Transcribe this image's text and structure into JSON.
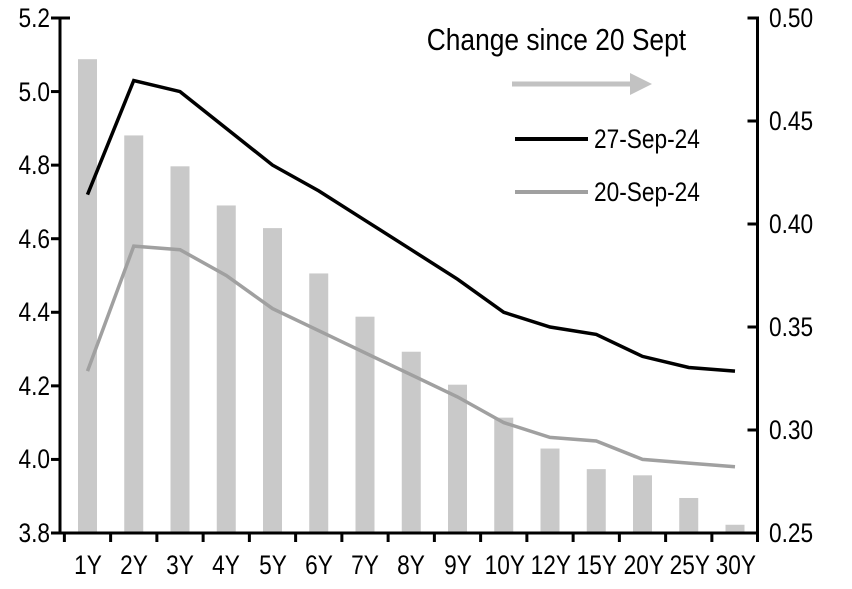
{
  "colors": {
    "black_line": "#000000",
    "gray_line": "#a0a0a0",
    "bars": "#c9c9c9",
    "arrow": "#c2c2c2",
    "axis": "#000000",
    "text": "#000000",
    "background": "#ffffff"
  },
  "legend": {
    "change_label": "Change since 20 Sept",
    "arrow_icon": "right-arrow",
    "series_27": "27-Sep-24",
    "series_20": "20-Sep-24"
  },
  "chart_data": {
    "type": "combo",
    "subtype": "bars on right axis + two lines on left axis",
    "categories": [
      "1Y",
      "2Y",
      "3Y",
      "4Y",
      "5Y",
      "6Y",
      "7Y",
      "8Y",
      "9Y",
      "10Y",
      "12Y",
      "15Y",
      "20Y",
      "25Y",
      "30Y"
    ],
    "series": [
      {
        "name": "Change since 20 Sept",
        "type": "bar",
        "axis": "right",
        "values": [
          0.48,
          0.443,
          0.428,
          0.409,
          0.398,
          0.376,
          0.355,
          0.338,
          0.322,
          0.306,
          0.291,
          0.281,
          0.278,
          0.267,
          0.254
        ]
      },
      {
        "name": "27-Sep-24",
        "type": "line",
        "axis": "left",
        "values": [
          4.72,
          5.03,
          5.0,
          4.9,
          4.8,
          4.73,
          4.65,
          4.57,
          4.49,
          4.4,
          4.36,
          4.34,
          4.28,
          4.25,
          4.24
        ]
      },
      {
        "name": "20-Sep-24",
        "type": "line",
        "axis": "left",
        "values": [
          4.24,
          4.58,
          4.57,
          4.5,
          4.41,
          4.35,
          4.29,
          4.23,
          4.17,
          4.1,
          4.06,
          4.05,
          4.0,
          3.99,
          3.98
        ]
      }
    ],
    "left_axis": {
      "min": 3.8,
      "max": 5.2,
      "tick_labels": [
        "5.2",
        "5.0",
        "4.8",
        "4.6",
        "4.4",
        "4.2",
        "4.0",
        "3.8"
      ]
    },
    "right_axis": {
      "min": 0.25,
      "max": 0.5,
      "tick_labels": [
        "0.50",
        "0.45",
        "0.40",
        "0.35",
        "0.30",
        "0.25"
      ]
    },
    "grid": false,
    "legend_position": "top-center-inside"
  }
}
